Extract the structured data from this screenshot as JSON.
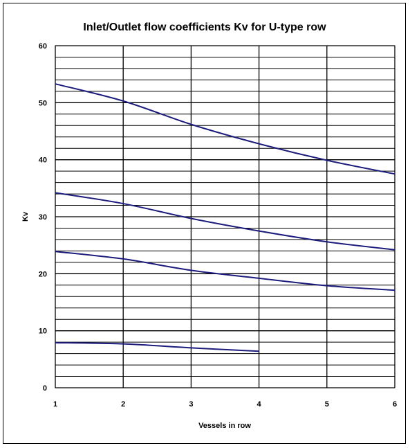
{
  "chart_data": {
    "type": "line",
    "title": "Inlet/Outlet flow coefficients Kv for U-type row",
    "xlabel": "Vessels in row",
    "ylabel": "Kv",
    "xlim": [
      1,
      6
    ],
    "ylim": [
      0,
      60
    ],
    "x_ticks": [
      1,
      2,
      3,
      4,
      5,
      6
    ],
    "y_ticks": [
      0,
      10,
      20,
      30,
      40,
      50,
      60
    ],
    "y_minor_step": 2,
    "grid": true,
    "legend": "none",
    "series_color": "#1c1c7c",
    "series": [
      {
        "x": [
          1,
          2,
          3,
          4,
          5,
          6
        ],
        "values": [
          53.3,
          50.3,
          46.2,
          42.8,
          39.9,
          37.5
        ]
      },
      {
        "x": [
          1,
          2,
          3,
          4,
          5,
          6
        ],
        "values": [
          34.2,
          32.3,
          29.7,
          27.5,
          25.6,
          24.2
        ]
      },
      {
        "x": [
          1,
          2,
          3,
          4,
          5,
          6
        ],
        "values": [
          23.9,
          22.6,
          20.6,
          19.2,
          17.9,
          17.1
        ]
      },
      {
        "x": [
          1,
          2,
          3,
          4
        ],
        "values": [
          7.9,
          7.7,
          7.0,
          6.4
        ]
      }
    ]
  }
}
